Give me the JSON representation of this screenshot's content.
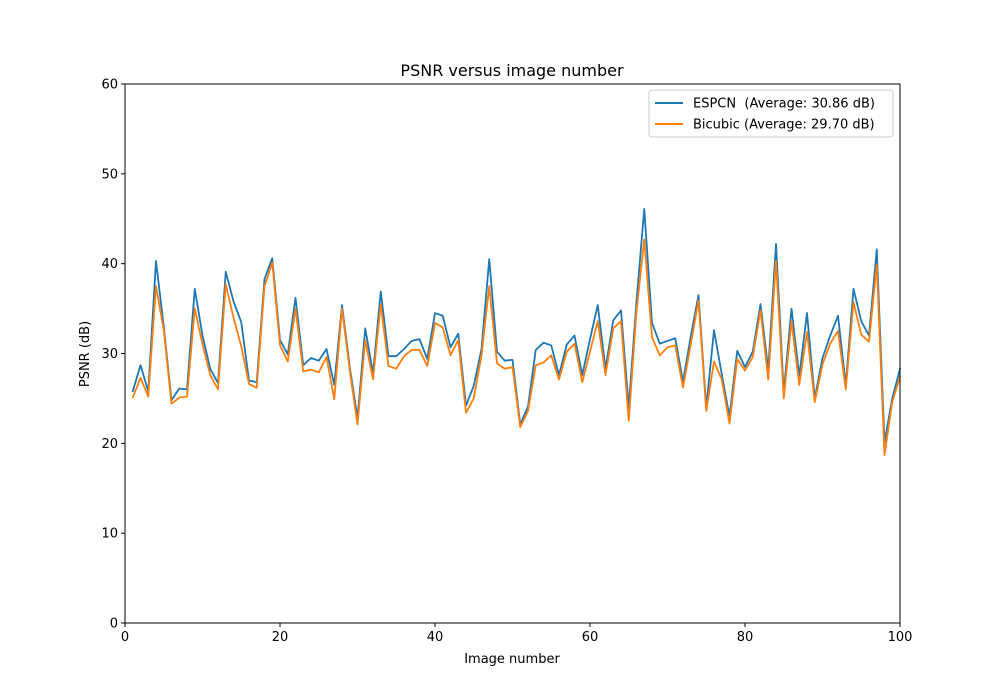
{
  "chart_data": {
    "type": "line",
    "title": "PSNR versus image number",
    "xlabel": "Image number",
    "ylabel": "PSNR (dB)",
    "xlim": [
      0,
      100
    ],
    "ylim": [
      0,
      60
    ],
    "xticks": [
      0,
      20,
      40,
      60,
      80,
      100
    ],
    "yticks": [
      0,
      10,
      20,
      30,
      40,
      50,
      60
    ],
    "grid": false,
    "legend_position": "top-right",
    "x": [
      1,
      2,
      3,
      4,
      5,
      6,
      7,
      8,
      9,
      10,
      11,
      12,
      13,
      14,
      15,
      16,
      17,
      18,
      19,
      20,
      21,
      22,
      23,
      24,
      25,
      26,
      27,
      28,
      29,
      30,
      31,
      32,
      33,
      34,
      35,
      36,
      37,
      38,
      39,
      40,
      41,
      42,
      43,
      44,
      45,
      46,
      47,
      48,
      49,
      50,
      51,
      52,
      53,
      54,
      55,
      56,
      57,
      58,
      59,
      60,
      61,
      62,
      63,
      64,
      65,
      66,
      67,
      68,
      69,
      70,
      71,
      72,
      73,
      74,
      75,
      76,
      77,
      78,
      79,
      80,
      81,
      82,
      83,
      84,
      85,
      86,
      87,
      88,
      89,
      90,
      91,
      92,
      93,
      94,
      95,
      96,
      97,
      98,
      99,
      100
    ],
    "series": [
      {
        "name": "ESPCN  (Average: 30.86 dB)",
        "color": "#1f77b4",
        "values": [
          25.8,
          28.7,
          25.8,
          40.3,
          33.0,
          24.8,
          26.1,
          26.0,
          37.2,
          32.0,
          28.3,
          26.7,
          39.1,
          35.8,
          33.5,
          27.0,
          26.8,
          38.3,
          40.6,
          31.5,
          29.9,
          36.2,
          28.7,
          29.5,
          29.2,
          30.5,
          26.5,
          35.4,
          28.5,
          22.8,
          32.8,
          27.8,
          36.9,
          29.7,
          29.7,
          30.5,
          31.4,
          31.6,
          29.4,
          34.5,
          34.2,
          30.7,
          32.2,
          24.2,
          26.4,
          30.5,
          40.5,
          30.2,
          29.2,
          29.3,
          22.1,
          24.1,
          30.4,
          31.2,
          30.9,
          27.6,
          31.0,
          32.0,
          27.6,
          31.6,
          35.4,
          28.3,
          33.7,
          34.8,
          24.0,
          35.8,
          46.1,
          33.4,
          31.1,
          31.4,
          31.7,
          26.9,
          31.9,
          36.5,
          24.0,
          32.6,
          27.7,
          23.0,
          30.3,
          28.5,
          30.2,
          35.5,
          28.2,
          42.2,
          25.7,
          35.0,
          27.5,
          34.5,
          25.0,
          29.5,
          32.0,
          34.2,
          26.5,
          37.2,
          33.6,
          32.0,
          41.6,
          20.1,
          25.0,
          28.3
        ]
      },
      {
        "name": "Bicubic (Average: 29.70 dB)",
        "color": "#ff7f0e",
        "values": [
          25.1,
          27.3,
          25.2,
          37.5,
          32.6,
          24.4,
          25.1,
          25.2,
          35.0,
          31.0,
          27.6,
          26.0,
          37.7,
          34.0,
          30.8,
          26.6,
          26.2,
          37.5,
          40.1,
          30.9,
          29.1,
          35.0,
          28.0,
          28.2,
          27.9,
          29.6,
          24.9,
          35.0,
          28.1,
          22.1,
          31.5,
          27.1,
          35.5,
          28.6,
          28.3,
          29.7,
          30.4,
          30.4,
          28.6,
          33.4,
          32.9,
          29.8,
          31.5,
          23.4,
          25.0,
          29.8,
          37.5,
          28.9,
          28.3,
          28.5,
          21.8,
          23.6,
          28.7,
          29.0,
          29.8,
          27.1,
          30.2,
          31.1,
          26.8,
          30.2,
          33.6,
          27.6,
          32.8,
          33.6,
          22.5,
          34.7,
          42.7,
          31.8,
          29.8,
          30.7,
          30.9,
          26.2,
          31.0,
          35.9,
          23.6,
          29.1,
          27.1,
          22.2,
          29.4,
          28.1,
          29.6,
          34.8,
          27.1,
          40.3,
          25.0,
          33.6,
          26.5,
          32.4,
          24.6,
          28.8,
          31.1,
          32.5,
          26.0,
          35.7,
          32.1,
          31.3,
          39.9,
          18.7,
          24.6,
          27.4
        ]
      }
    ]
  }
}
